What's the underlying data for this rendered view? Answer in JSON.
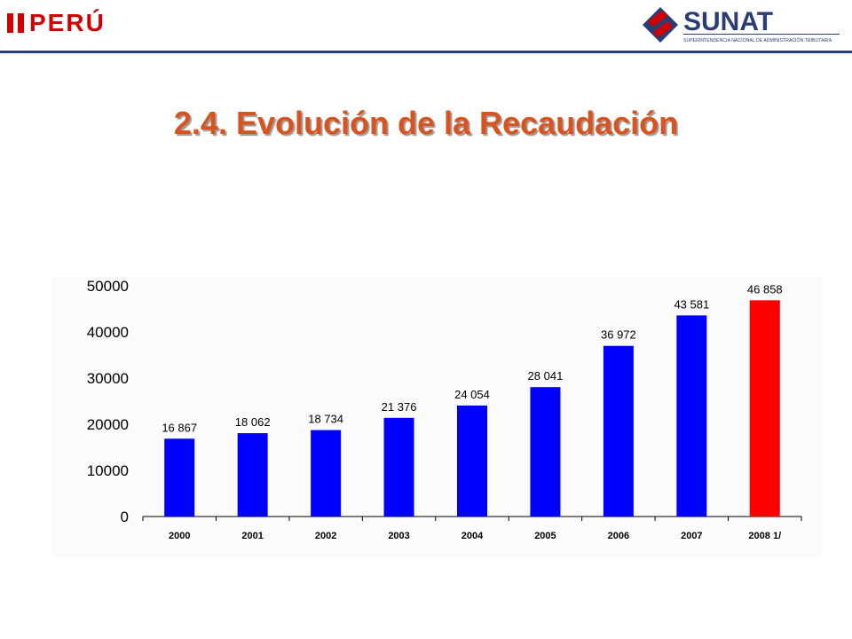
{
  "header": {
    "country_logo_text": "PERÚ",
    "agency_logo_text": "SUNAT",
    "agency_subtitle": "SUPERINTENDENCIA NACIONAL DE ADMINISTRACIÓN TRIBUTARIA"
  },
  "colors": {
    "title": "#d9531e",
    "bar_primary": "#0000ff",
    "bar_highlight": "#ff0000",
    "peru_red": "#d40000",
    "sunat_navy": "#2b3e73"
  },
  "title": "2.4. Evolución de la Recaudación",
  "chart_data": {
    "type": "bar",
    "categories": [
      "2000",
      "2001",
      "2002",
      "2003",
      "2004",
      "2005",
      "2006",
      "2007",
      "2008 1/"
    ],
    "values": [
      16867,
      18062,
      18734,
      21376,
      24054,
      28041,
      36972,
      43581,
      46858
    ],
    "data_labels": [
      "16 867",
      "18 062",
      "18 734",
      "21 376",
      "24 054",
      "28 041",
      "36 972",
      "43 581",
      "46 858"
    ],
    "highlight_index": 8,
    "yticks": [
      "0",
      "10000",
      "20000",
      "30000",
      "40000",
      "50000"
    ],
    "ylim": [
      0,
      50000
    ],
    "grid": false,
    "legend": "none",
    "title": "",
    "xlabel": "",
    "ylabel": ""
  }
}
